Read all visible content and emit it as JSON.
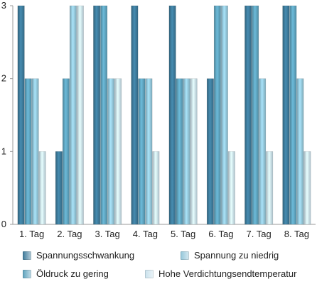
{
  "chart_data": {
    "type": "bar",
    "title": "",
    "xlabel": "",
    "ylabel": "",
    "ylim": [
      0,
      3
    ],
    "y_ticks": [
      "0",
      "1",
      "2",
      "3"
    ],
    "grid": false,
    "legend_position": "bottom",
    "categories": [
      "1. Tag",
      "2. Tag",
      "3. Tag",
      "4. Tag",
      "5. Tag",
      "6. Tag",
      "7. Tag",
      "8. Tag"
    ],
    "series": [
      {
        "name": "Spannungsschwankung",
        "color": "#3d7a9a",
        "values": [
          3,
          1,
          3,
          3,
          3,
          2,
          3,
          3
        ]
      },
      {
        "name": "Öldruck zu gering",
        "color": "#5ea3be",
        "values": [
          2,
          2,
          3,
          2,
          2,
          3,
          3,
          3
        ]
      },
      {
        "name": "Spannung zu niedrig",
        "color": "#93c6d9",
        "values": [
          2,
          3,
          2,
          2,
          2,
          3,
          2,
          2
        ]
      },
      {
        "name": "Hohe Verdichtungsendtemperatur",
        "color": "#c9e1ec",
        "values": [
          1,
          3,
          2,
          1,
          2,
          1,
          1,
          1
        ]
      }
    ]
  }
}
